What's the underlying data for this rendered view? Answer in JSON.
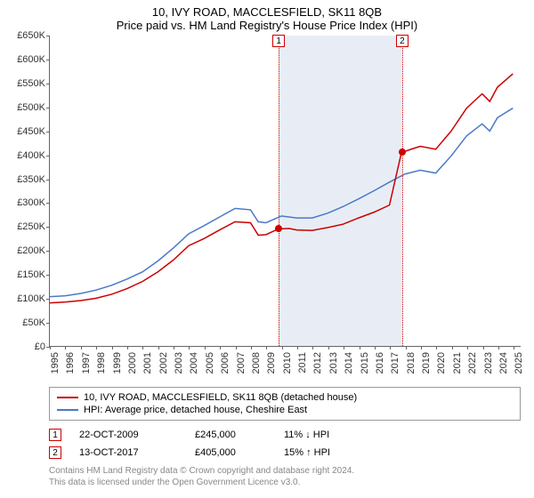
{
  "title": {
    "line1": "10, IVY ROAD, MACCLESFIELD, SK11 8QB",
    "line2": "Price paid vs. HM Land Registry's House Price Index (HPI)"
  },
  "chart": {
    "type": "line",
    "background_color": "#ffffff",
    "shade_band_color": "#e8edf5",
    "axis_color": "#666666",
    "text_color": "#333333",
    "xlim": [
      1995,
      2025.5
    ],
    "ylim": [
      0,
      650000
    ],
    "yticks": [
      0,
      50000,
      100000,
      150000,
      200000,
      250000,
      300000,
      350000,
      400000,
      450000,
      500000,
      550000,
      600000,
      650000
    ],
    "ytick_labels": [
      "£0",
      "£50K",
      "£100K",
      "£150K",
      "£200K",
      "£250K",
      "£300K",
      "£350K",
      "£400K",
      "£450K",
      "£500K",
      "£550K",
      "£600K",
      "£650K"
    ],
    "xticks": [
      1995,
      1996,
      1997,
      1998,
      1999,
      2000,
      2001,
      2002,
      2003,
      2004,
      2005,
      2006,
      2007,
      2008,
      2009,
      2010,
      2011,
      2012,
      2013,
      2014,
      2015,
      2016,
      2017,
      2018,
      2019,
      2020,
      2021,
      2022,
      2023,
      2024,
      2025
    ],
    "shade_band_start": 2009.8,
    "shade_band_end": 2017.78,
    "series_property": {
      "label": "10, IVY ROAD, MACCLESFIELD, SK11 8QB (detached house)",
      "color": "#cc0000",
      "line_width": 1.5,
      "points": [
        [
          1995,
          90000
        ],
        [
          1996,
          92000
        ],
        [
          1997,
          95000
        ],
        [
          1998,
          100000
        ],
        [
          1999,
          108000
        ],
        [
          2000,
          120000
        ],
        [
          2001,
          135000
        ],
        [
          2002,
          155000
        ],
        [
          2003,
          180000
        ],
        [
          2004,
          210000
        ],
        [
          2005,
          225000
        ],
        [
          2006,
          243000
        ],
        [
          2007,
          260000
        ],
        [
          2008,
          258000
        ],
        [
          2008.5,
          232000
        ],
        [
          2009,
          233000
        ],
        [
          2009.8,
          245000
        ],
        [
          2010.5,
          246000
        ],
        [
          2011,
          243000
        ],
        [
          2012,
          242000
        ],
        [
          2013,
          248000
        ],
        [
          2014,
          255000
        ],
        [
          2015,
          268000
        ],
        [
          2016,
          280000
        ],
        [
          2017,
          295000
        ],
        [
          2017.78,
          405000
        ],
        [
          2018.5,
          413000
        ],
        [
          2019,
          418000
        ],
        [
          2020,
          412000
        ],
        [
          2021,
          450000
        ],
        [
          2022,
          498000
        ],
        [
          2023,
          528000
        ],
        [
          2023.5,
          512000
        ],
        [
          2024,
          542000
        ],
        [
          2025,
          570000
        ]
      ]
    },
    "series_hpi": {
      "label": "HPI: Average price, detached house, Cheshire East",
      "color": "#4a7ac7",
      "line_width": 1.5,
      "points": [
        [
          1995,
          103000
        ],
        [
          1996,
          105000
        ],
        [
          1997,
          110000
        ],
        [
          1998,
          117000
        ],
        [
          1999,
          127000
        ],
        [
          2000,
          140000
        ],
        [
          2001,
          155000
        ],
        [
          2002,
          178000
        ],
        [
          2003,
          205000
        ],
        [
          2004,
          235000
        ],
        [
          2005,
          252000
        ],
        [
          2006,
          270000
        ],
        [
          2007,
          288000
        ],
        [
          2008,
          285000
        ],
        [
          2008.5,
          260000
        ],
        [
          2009,
          258000
        ],
        [
          2010,
          272000
        ],
        [
          2011,
          268000
        ],
        [
          2012,
          268000
        ],
        [
          2013,
          278000
        ],
        [
          2014,
          292000
        ],
        [
          2015,
          308000
        ],
        [
          2016,
          325000
        ],
        [
          2017,
          343000
        ],
        [
          2018,
          360000
        ],
        [
          2019,
          368000
        ],
        [
          2020,
          362000
        ],
        [
          2021,
          398000
        ],
        [
          2022,
          440000
        ],
        [
          2023,
          465000
        ],
        [
          2023.5,
          450000
        ],
        [
          2024,
          478000
        ],
        [
          2025,
          498000
        ]
      ]
    },
    "markers": [
      {
        "num": "1",
        "x": 2009.8,
        "y": 245000,
        "color": "#cc0000"
      },
      {
        "num": "2",
        "x": 2017.78,
        "y": 405000,
        "color": "#cc0000"
      }
    ]
  },
  "sales": [
    {
      "num": "1",
      "date": "22-OCT-2009",
      "price": "£245,000",
      "delta": "11% ↓ HPI"
    },
    {
      "num": "2",
      "date": "13-OCT-2017",
      "price": "£405,000",
      "delta": "15% ↑ HPI"
    }
  ],
  "footer": {
    "line1": "Contains HM Land Registry data © Crown copyright and database right 2024.",
    "line2": "This data is licensed under the Open Government Licence v3.0."
  }
}
